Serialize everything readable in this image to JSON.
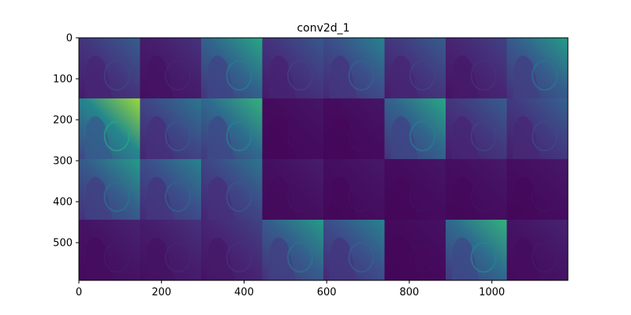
{
  "chart_data": {
    "type": "heatmap",
    "title": "conv2d_1",
    "xlabel": "",
    "ylabel": "",
    "xlim": [
      0,
      1184
    ],
    "ylim": [
      592,
      0
    ],
    "y_inverted": true,
    "x_ticks": [
      0,
      200,
      400,
      600,
      800,
      1000
    ],
    "y_ticks": [
      0,
      100,
      200,
      300,
      400,
      500
    ],
    "grid": false,
    "legend": "none",
    "colormap": "viridis",
    "tiles_cols": 8,
    "tiles_rows": 4,
    "tile_brightness": [
      [
        0.3,
        0.15,
        0.6,
        0.28,
        0.45,
        0.3,
        0.2,
        0.55
      ],
      [
        0.85,
        0.4,
        0.65,
        0.06,
        0.06,
        0.6,
        0.3,
        0.32
      ],
      [
        0.55,
        0.45,
        0.4,
        0.08,
        0.07,
        0.06,
        0.07,
        0.07
      ],
      [
        0.1,
        0.15,
        0.2,
        0.55,
        0.45,
        0.05,
        0.65,
        0.1
      ]
    ]
  },
  "colors": {
    "colormap_stops": [
      "#440154",
      "#472c7a",
      "#3b518b",
      "#2c718e",
      "#21908d",
      "#27ad81",
      "#5cc863",
      "#aadc32",
      "#fde725"
    ],
    "axis": "#000000"
  }
}
